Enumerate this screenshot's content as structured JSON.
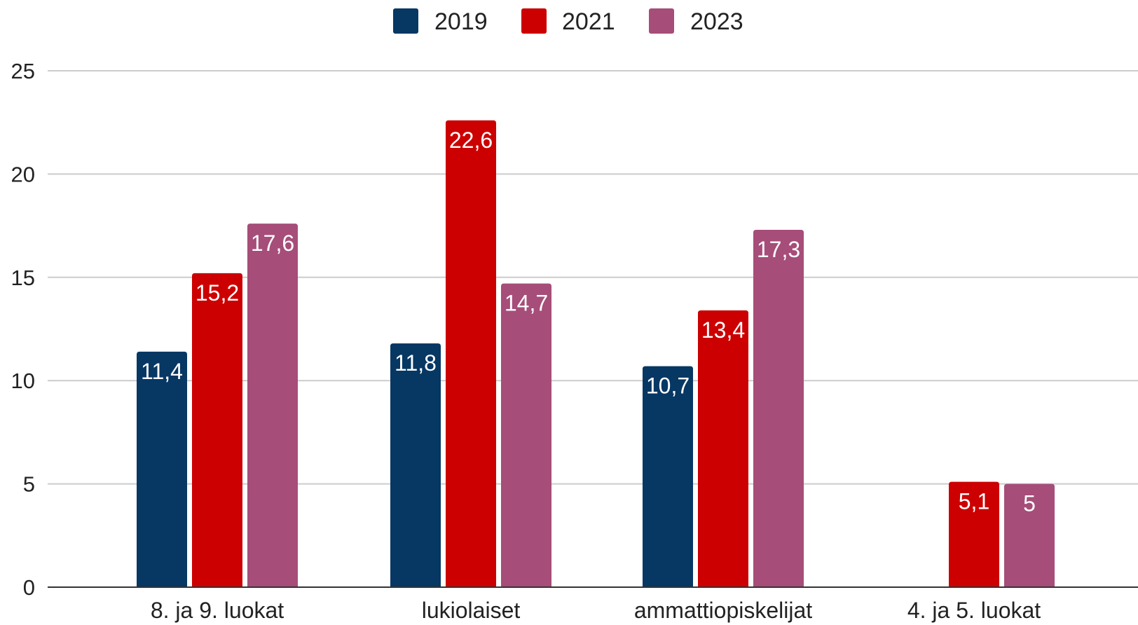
{
  "chart_data": {
    "type": "bar",
    "categories": [
      "8. ja 9. luokat",
      "lukiolaiset",
      "ammattiopiskelijat",
      "4. ja 5. luokat"
    ],
    "series": [
      {
        "name": "2019",
        "color": "#073763",
        "values": [
          11.4,
          11.8,
          10.7,
          null
        ],
        "labels": [
          "11,4",
          "11,8",
          "10,7",
          ""
        ]
      },
      {
        "name": "2021",
        "color": "#cc0000",
        "values": [
          15.2,
          22.6,
          13.4,
          5.1
        ],
        "labels": [
          "15,2",
          "22,6",
          "13,4",
          "5,1"
        ]
      },
      {
        "name": "2023",
        "color": "#a64d79",
        "values": [
          17.6,
          14.7,
          17.3,
          5.0
        ],
        "labels": [
          "17,6",
          "14,7",
          "17,3",
          "5"
        ]
      }
    ],
    "ylim": [
      0,
      25
    ],
    "yticks": [
      0,
      5,
      10,
      15,
      20,
      25
    ],
    "grid": true,
    "legend_position": "top-center",
    "title": "",
    "xlabel": "",
    "ylabel": ""
  }
}
